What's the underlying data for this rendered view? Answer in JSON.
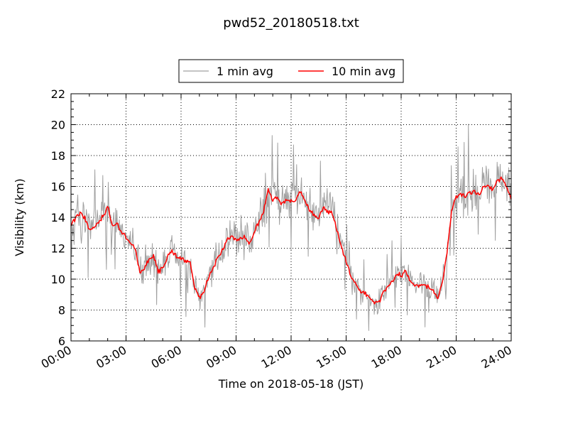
{
  "chart_data": {
    "type": "line",
    "title": "pwd52_20180518.txt",
    "xlabel": "Time on 2018-05-18 (JST)",
    "ylabel": "Visibility (km)",
    "xlim": [
      "00:00",
      "24:00"
    ],
    "ylim": [
      6,
      22
    ],
    "x_ticks": [
      "00:00",
      "03:00",
      "06:00",
      "09:00",
      "12:00",
      "15:00",
      "18:00",
      "21:00",
      "24:00"
    ],
    "y_ticks": [
      6,
      8,
      10,
      12,
      14,
      16,
      18,
      20,
      22
    ],
    "grid": true,
    "legend": {
      "placement": "top-center",
      "columns": 2
    },
    "series": [
      {
        "name": "1 min avg",
        "color": "#a0a0a0",
        "style": "noisy",
        "x": [
          "00:00",
          "00:15",
          "00:30",
          "00:45",
          "01:00",
          "01:15",
          "01:30",
          "01:45",
          "02:00",
          "02:15",
          "02:30",
          "02:45",
          "03:00",
          "03:15",
          "03:30",
          "03:45",
          "04:00",
          "04:15",
          "04:30",
          "04:45",
          "05:00",
          "05:15",
          "05:30",
          "05:45",
          "06:00",
          "06:15",
          "06:30",
          "06:45",
          "07:00",
          "07:15",
          "07:30",
          "07:45",
          "08:00",
          "08:15",
          "08:30",
          "08:45",
          "09:00",
          "09:15",
          "09:30",
          "09:45",
          "10:00",
          "10:15",
          "10:30",
          "10:45",
          "11:00",
          "11:15",
          "11:30",
          "11:45",
          "12:00",
          "12:15",
          "12:30",
          "12:45",
          "13:00",
          "13:15",
          "13:30",
          "13:45",
          "14:00",
          "14:15",
          "14:30",
          "14:45",
          "15:00",
          "15:15",
          "15:30",
          "15:45",
          "16:00",
          "16:15",
          "16:30",
          "16:45",
          "17:00",
          "17:15",
          "17:30",
          "17:45",
          "18:00",
          "18:15",
          "18:30",
          "18:45",
          "19:00",
          "19:15",
          "19:30",
          "19:45",
          "20:00",
          "20:15",
          "20:30",
          "20:45",
          "21:00",
          "21:15",
          "21:30",
          "21:45",
          "22:00",
          "22:15",
          "22:30",
          "22:45",
          "23:00",
          "23:15",
          "23:30",
          "23:45",
          "24:00"
        ],
        "values": [
          13.7,
          14.1,
          14.3,
          14.0,
          13.3,
          13.4,
          13.8,
          14.2,
          14.6,
          13.6,
          13.7,
          13.1,
          12.8,
          12.5,
          12.0,
          10.6,
          10.8,
          11.4,
          11.5,
          10.6,
          10.8,
          11.5,
          11.9,
          11.6,
          11.3,
          11.2,
          11.0,
          9.6,
          8.9,
          9.3,
          10.2,
          10.8,
          11.5,
          12.0,
          12.6,
          12.9,
          12.6,
          12.7,
          12.8,
          12.4,
          13.2,
          13.8,
          14.5,
          15.9,
          15.2,
          15.4,
          14.9,
          15.3,
          15.0,
          15.2,
          15.8,
          15.2,
          14.6,
          14.1,
          14.0,
          14.6,
          14.5,
          14.3,
          13.3,
          12.2,
          11.4,
          10.2,
          9.8,
          9.4,
          9.2,
          8.9,
          8.6,
          8.5,
          9.1,
          9.6,
          9.8,
          10.4,
          10.3,
          10.6,
          9.9,
          9.6,
          9.7,
          9.8,
          9.5,
          9.4,
          8.9,
          10.0,
          11.8,
          14.4,
          15.4,
          15.5,
          15.3,
          15.6,
          15.8,
          15.4,
          16.0,
          16.2,
          15.7,
          16.4,
          16.6,
          16.1,
          15.2
        ],
        "noise_amplitude": 1.1
      },
      {
        "name": "10 min avg",
        "color": "#ff0000",
        "style": "smooth",
        "x": [
          "00:00",
          "00:15",
          "00:30",
          "00:45",
          "01:00",
          "01:15",
          "01:30",
          "01:45",
          "02:00",
          "02:15",
          "02:30",
          "02:45",
          "03:00",
          "03:15",
          "03:30",
          "03:45",
          "04:00",
          "04:15",
          "04:30",
          "04:45",
          "05:00",
          "05:15",
          "05:30",
          "05:45",
          "06:00",
          "06:15",
          "06:30",
          "06:45",
          "07:00",
          "07:15",
          "07:30",
          "07:45",
          "08:00",
          "08:15",
          "08:30",
          "08:45",
          "09:00",
          "09:15",
          "09:30",
          "09:45",
          "10:00",
          "10:15",
          "10:30",
          "10:45",
          "11:00",
          "11:15",
          "11:30",
          "11:45",
          "12:00",
          "12:15",
          "12:30",
          "12:45",
          "13:00",
          "13:15",
          "13:30",
          "13:45",
          "14:00",
          "14:15",
          "14:30",
          "14:45",
          "15:00",
          "15:15",
          "15:30",
          "15:45",
          "16:00",
          "16:15",
          "16:30",
          "16:45",
          "17:00",
          "17:15",
          "17:30",
          "17:45",
          "18:00",
          "18:15",
          "18:30",
          "18:45",
          "19:00",
          "19:15",
          "19:30",
          "19:45",
          "20:00",
          "20:15",
          "20:30",
          "20:45",
          "21:00",
          "21:15",
          "21:30",
          "21:45",
          "22:00",
          "22:15",
          "22:30",
          "22:45",
          "23:00",
          "23:15",
          "23:30",
          "23:45",
          "24:00"
        ],
        "values": [
          13.5,
          14.0,
          14.3,
          13.9,
          13.2,
          13.3,
          13.7,
          14.1,
          14.7,
          13.5,
          13.6,
          13.0,
          12.7,
          12.4,
          12.0,
          10.4,
          10.7,
          11.3,
          11.5,
          10.5,
          10.7,
          11.4,
          11.8,
          11.5,
          11.3,
          11.2,
          11.0,
          9.4,
          8.8,
          9.2,
          10.1,
          10.7,
          11.4,
          11.9,
          12.5,
          12.8,
          12.5,
          12.6,
          12.7,
          12.3,
          13.1,
          13.7,
          14.4,
          15.8,
          15.1,
          15.3,
          14.8,
          15.2,
          15.0,
          15.1,
          15.7,
          15.1,
          14.5,
          14.1,
          13.9,
          14.6,
          14.4,
          14.2,
          13.2,
          12.0,
          11.2,
          10.1,
          9.7,
          9.3,
          9.1,
          8.8,
          8.5,
          8.4,
          9.0,
          9.5,
          9.8,
          10.3,
          10.2,
          10.5,
          9.8,
          9.6,
          9.6,
          9.7,
          9.4,
          9.3,
          8.7,
          9.9,
          11.7,
          14.4,
          15.4,
          15.5,
          15.3,
          15.6,
          15.7,
          15.4,
          16.0,
          16.1,
          15.7,
          16.4,
          16.5,
          16.0,
          15.2
        ],
        "noise_amplitude": 0.15
      }
    ]
  }
}
